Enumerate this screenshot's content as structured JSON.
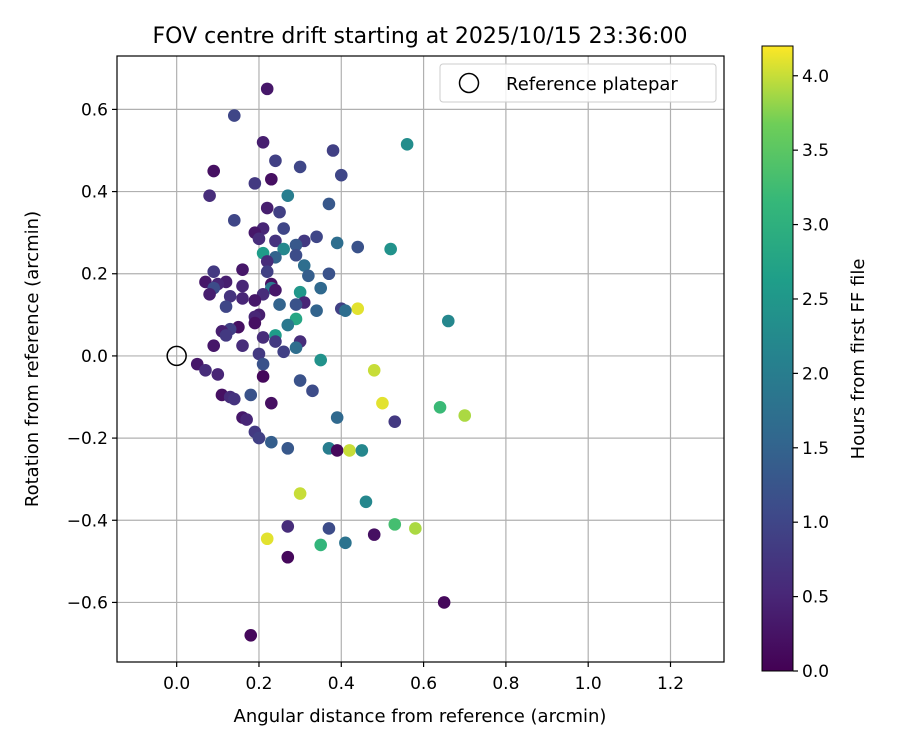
{
  "chart_data": {
    "type": "scatter",
    "title": "FOV centre drift starting at 2025/10/15 23:36:00",
    "xlabel": "Angular distance from reference (arcmin)",
    "ylabel": "Rotation from reference (arcmin)",
    "xlim": [
      -0.145,
      1.33
    ],
    "ylim": [
      -0.745,
      0.73
    ],
    "xticks": [
      0.0,
      0.2,
      0.4,
      0.6,
      0.8,
      1.0,
      1.2
    ],
    "xtick_labels": [
      "0.0",
      "0.2",
      "0.4",
      "0.6",
      "0.8",
      "1.0",
      "1.2"
    ],
    "yticks": [
      -0.6,
      -0.4,
      -0.2,
      0.0,
      0.2,
      0.4,
      0.6
    ],
    "ytick_labels": [
      "−0.6",
      "−0.4",
      "−0.2",
      "0.0",
      "0.2",
      "0.4",
      "0.6"
    ],
    "grid": true,
    "legend_position": "top-right",
    "legend_label": "Reference platepar",
    "reference_point": {
      "x": 0.0,
      "y": 0.0
    },
    "colorbar": {
      "label": "Hours from first FF file",
      "colormap": "viridis",
      "range": [
        0.0,
        4.2
      ],
      "ticks": [
        0.0,
        0.5,
        1.0,
        1.5,
        2.0,
        2.5,
        3.0,
        3.5,
        4.0
      ],
      "tick_labels": [
        "0.0",
        "0.5",
        "1.0",
        "1.5",
        "2.0",
        "2.5",
        "3.0",
        "3.5",
        "4.0"
      ]
    },
    "points": [
      {
        "x": 0.22,
        "y": 0.65,
        "h": 0.3
      },
      {
        "x": 0.14,
        "y": 0.585,
        "h": 1.0
      },
      {
        "x": 0.21,
        "y": 0.52,
        "h": 0.4
      },
      {
        "x": 0.38,
        "y": 0.5,
        "h": 0.9
      },
      {
        "x": 0.56,
        "y": 0.515,
        "h": 2.3
      },
      {
        "x": 0.24,
        "y": 0.475,
        "h": 0.9
      },
      {
        "x": 0.3,
        "y": 0.46,
        "h": 1.0
      },
      {
        "x": 0.09,
        "y": 0.45,
        "h": 0.2
      },
      {
        "x": 0.4,
        "y": 0.44,
        "h": 1.0
      },
      {
        "x": 0.19,
        "y": 0.42,
        "h": 0.8
      },
      {
        "x": 0.23,
        "y": 0.43,
        "h": 0.2
      },
      {
        "x": 0.08,
        "y": 0.39,
        "h": 0.6
      },
      {
        "x": 0.27,
        "y": 0.39,
        "h": 2.0
      },
      {
        "x": 0.37,
        "y": 0.37,
        "h": 1.3
      },
      {
        "x": 0.22,
        "y": 0.36,
        "h": 0.4
      },
      {
        "x": 0.25,
        "y": 0.35,
        "h": 0.9
      },
      {
        "x": 0.14,
        "y": 0.33,
        "h": 1.0
      },
      {
        "x": 0.21,
        "y": 0.31,
        "h": 0.5
      },
      {
        "x": 0.26,
        "y": 0.31,
        "h": 1.0
      },
      {
        "x": 0.19,
        "y": 0.3,
        "h": 0.3
      },
      {
        "x": 0.2,
        "y": 0.285,
        "h": 0.6
      },
      {
        "x": 0.24,
        "y": 0.28,
        "h": 0.7
      },
      {
        "x": 0.31,
        "y": 0.28,
        "h": 0.8
      },
      {
        "x": 0.34,
        "y": 0.29,
        "h": 1.0
      },
      {
        "x": 0.29,
        "y": 0.27,
        "h": 1.3
      },
      {
        "x": 0.39,
        "y": 0.275,
        "h": 1.7
      },
      {
        "x": 0.44,
        "y": 0.265,
        "h": 1.2
      },
      {
        "x": 0.52,
        "y": 0.26,
        "h": 2.4
      },
      {
        "x": 0.26,
        "y": 0.26,
        "h": 2.2
      },
      {
        "x": 0.21,
        "y": 0.25,
        "h": 2.6
      },
      {
        "x": 0.24,
        "y": 0.24,
        "h": 1.5
      },
      {
        "x": 0.29,
        "y": 0.245,
        "h": 1.1
      },
      {
        "x": 0.22,
        "y": 0.23,
        "h": 0.6
      },
      {
        "x": 0.31,
        "y": 0.22,
        "h": 1.7
      },
      {
        "x": 0.16,
        "y": 0.21,
        "h": 0.3
      },
      {
        "x": 0.09,
        "y": 0.205,
        "h": 0.8
      },
      {
        "x": 0.22,
        "y": 0.205,
        "h": 0.9
      },
      {
        "x": 0.37,
        "y": 0.2,
        "h": 1.2
      },
      {
        "x": 0.32,
        "y": 0.195,
        "h": 1.4
      },
      {
        "x": 0.12,
        "y": 0.18,
        "h": 0.4
      },
      {
        "x": 0.07,
        "y": 0.18,
        "h": 0.3
      },
      {
        "x": 0.1,
        "y": 0.175,
        "h": 0.5
      },
      {
        "x": 0.23,
        "y": 0.175,
        "h": 0.2
      },
      {
        "x": 0.16,
        "y": 0.17,
        "h": 0.5
      },
      {
        "x": 0.23,
        "y": 0.165,
        "h": 1.9
      },
      {
        "x": 0.24,
        "y": 0.16,
        "h": 0.3
      },
      {
        "x": 0.35,
        "y": 0.165,
        "h": 1.6
      },
      {
        "x": 0.3,
        "y": 0.155,
        "h": 2.5
      },
      {
        "x": 0.09,
        "y": 0.165,
        "h": 1.1
      },
      {
        "x": 0.08,
        "y": 0.15,
        "h": 0.4
      },
      {
        "x": 0.21,
        "y": 0.15,
        "h": 0.6
      },
      {
        "x": 0.13,
        "y": 0.145,
        "h": 0.7
      },
      {
        "x": 0.16,
        "y": 0.14,
        "h": 0.5
      },
      {
        "x": 0.19,
        "y": 0.135,
        "h": 0.3
      },
      {
        "x": 0.31,
        "y": 0.13,
        "h": 0.5
      },
      {
        "x": 0.25,
        "y": 0.125,
        "h": 1.5
      },
      {
        "x": 0.29,
        "y": 0.125,
        "h": 1.2
      },
      {
        "x": 0.12,
        "y": 0.12,
        "h": 1.0
      },
      {
        "x": 0.4,
        "y": 0.115,
        "h": 0.9
      },
      {
        "x": 0.44,
        "y": 0.115,
        "h": 4.1
      },
      {
        "x": 0.34,
        "y": 0.11,
        "h": 1.5
      },
      {
        "x": 0.41,
        "y": 0.11,
        "h": 1.7
      },
      {
        "x": 0.2,
        "y": 0.1,
        "h": 0.4
      },
      {
        "x": 0.19,
        "y": 0.095,
        "h": 0.5
      },
      {
        "x": 0.29,
        "y": 0.09,
        "h": 2.8
      },
      {
        "x": 0.66,
        "y": 0.085,
        "h": 2.2
      },
      {
        "x": 0.19,
        "y": 0.08,
        "h": 0.2
      },
      {
        "x": 0.27,
        "y": 0.075,
        "h": 1.9
      },
      {
        "x": 0.15,
        "y": 0.07,
        "h": 0.2
      },
      {
        "x": 0.13,
        "y": 0.065,
        "h": 0.9
      },
      {
        "x": 0.11,
        "y": 0.06,
        "h": 0.4
      },
      {
        "x": 0.12,
        "y": 0.05,
        "h": 0.8
      },
      {
        "x": 0.24,
        "y": 0.05,
        "h": 2.6
      },
      {
        "x": 0.21,
        "y": 0.045,
        "h": 0.6
      },
      {
        "x": 0.24,
        "y": 0.035,
        "h": 0.8
      },
      {
        "x": 0.3,
        "y": 0.035,
        "h": 0.6
      },
      {
        "x": 0.16,
        "y": 0.025,
        "h": 0.6
      },
      {
        "x": 0.09,
        "y": 0.025,
        "h": 0.3
      },
      {
        "x": 0.29,
        "y": 0.02,
        "h": 1.7
      },
      {
        "x": 0.26,
        "y": 0.01,
        "h": 0.9
      },
      {
        "x": 0.2,
        "y": 0.005,
        "h": 0.8
      },
      {
        "x": 0.35,
        "y": -0.01,
        "h": 2.4
      },
      {
        "x": 0.05,
        "y": -0.02,
        "h": 0.3
      },
      {
        "x": 0.21,
        "y": -0.02,
        "h": 1.2
      },
      {
        "x": 0.07,
        "y": -0.035,
        "h": 0.6
      },
      {
        "x": 0.48,
        "y": -0.035,
        "h": 4.0
      },
      {
        "x": 0.1,
        "y": -0.045,
        "h": 0.5
      },
      {
        "x": 0.21,
        "y": -0.05,
        "h": 0.1
      },
      {
        "x": 0.3,
        "y": -0.06,
        "h": 1.2
      },
      {
        "x": 0.33,
        "y": -0.085,
        "h": 1.1
      },
      {
        "x": 0.11,
        "y": -0.095,
        "h": 0.2
      },
      {
        "x": 0.18,
        "y": -0.095,
        "h": 1.2
      },
      {
        "x": 0.13,
        "y": -0.1,
        "h": 0.6
      },
      {
        "x": 0.14,
        "y": -0.105,
        "h": 0.7
      },
      {
        "x": 0.5,
        "y": -0.115,
        "h": 4.1
      },
      {
        "x": 0.23,
        "y": -0.115,
        "h": 0.2
      },
      {
        "x": 0.64,
        "y": -0.125,
        "h": 3.2
      },
      {
        "x": 0.7,
        "y": -0.145,
        "h": 3.9
      },
      {
        "x": 0.16,
        "y": -0.15,
        "h": 0.3
      },
      {
        "x": 0.39,
        "y": -0.15,
        "h": 1.6
      },
      {
        "x": 0.17,
        "y": -0.155,
        "h": 0.5
      },
      {
        "x": 0.53,
        "y": -0.16,
        "h": 0.8
      },
      {
        "x": 0.19,
        "y": -0.185,
        "h": 0.8
      },
      {
        "x": 0.2,
        "y": -0.2,
        "h": 0.9
      },
      {
        "x": 0.23,
        "y": -0.21,
        "h": 1.4
      },
      {
        "x": 0.27,
        "y": -0.225,
        "h": 1.3
      },
      {
        "x": 0.37,
        "y": -0.225,
        "h": 2.0
      },
      {
        "x": 0.39,
        "y": -0.23,
        "h": 0.1
      },
      {
        "x": 0.42,
        "y": -0.23,
        "h": 4.0
      },
      {
        "x": 0.45,
        "y": -0.23,
        "h": 2.2
      },
      {
        "x": 0.3,
        "y": -0.335,
        "h": 4.0
      },
      {
        "x": 0.46,
        "y": -0.355,
        "h": 2.2
      },
      {
        "x": 0.27,
        "y": -0.415,
        "h": 0.6
      },
      {
        "x": 0.37,
        "y": -0.42,
        "h": 1.1
      },
      {
        "x": 0.53,
        "y": -0.41,
        "h": 3.3
      },
      {
        "x": 0.58,
        "y": -0.42,
        "h": 3.9
      },
      {
        "x": 0.48,
        "y": -0.435,
        "h": 0.2
      },
      {
        "x": 0.22,
        "y": -0.445,
        "h": 4.1
      },
      {
        "x": 0.35,
        "y": -0.46,
        "h": 3.1
      },
      {
        "x": 0.41,
        "y": -0.455,
        "h": 1.8
      },
      {
        "x": 0.27,
        "y": -0.49,
        "h": 0.1
      },
      {
        "x": 0.65,
        "y": -0.6,
        "h": 0.1
      },
      {
        "x": 0.18,
        "y": -0.68,
        "h": 0.1
      }
    ]
  }
}
